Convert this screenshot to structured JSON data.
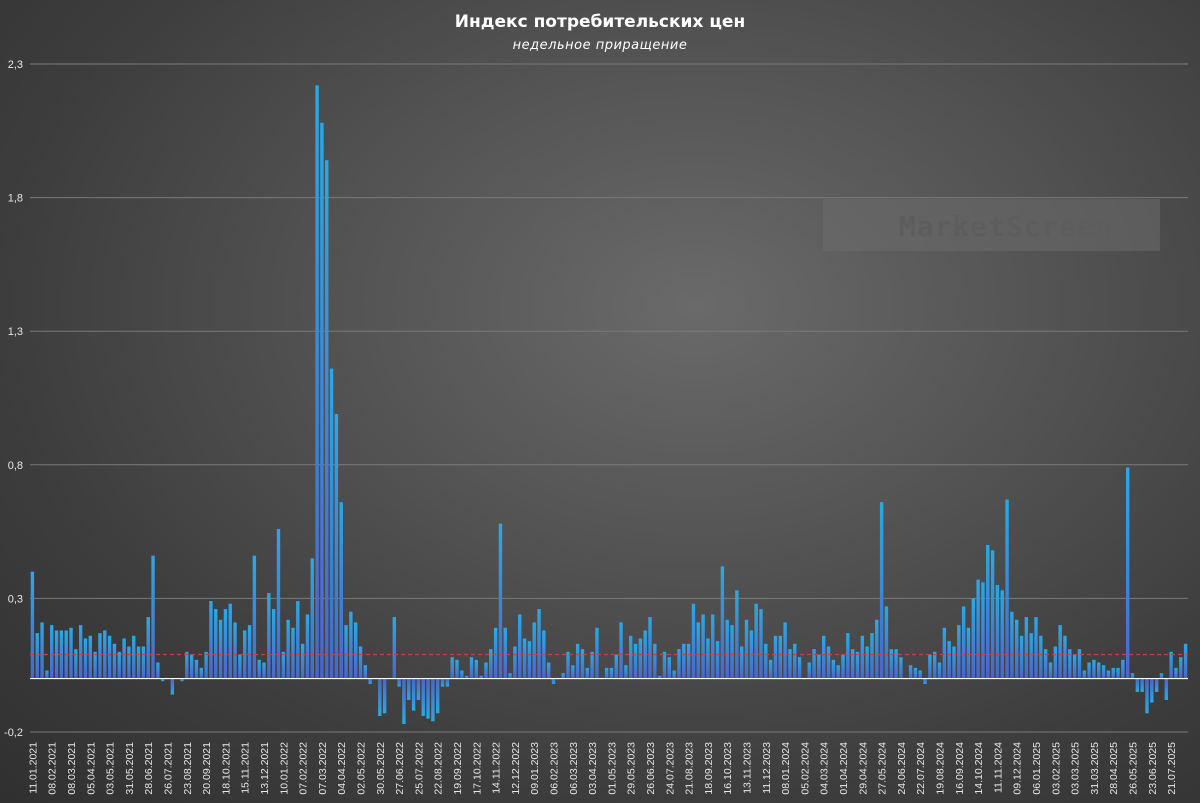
{
  "chart_data": {
    "type": "bar",
    "title": "Индекс потребительских цен",
    "subtitle": "недельное приращение",
    "watermark": "MarketScreen",
    "xlabel": "",
    "ylabel": "",
    "ylim": [
      -0.2,
      2.3
    ],
    "yticks": [
      -0.2,
      0.3,
      0.8,
      1.3,
      1.8,
      2.3
    ],
    "ytick_labels": [
      "-0,2",
      "0,3",
      "0,8",
      "1,3",
      "1,8",
      "2,3"
    ],
    "grid": true,
    "reference_line": {
      "value": 0.09,
      "color": "#d63a3a",
      "style": "dashed"
    },
    "colors": {
      "bar_top": "#2aa9e6",
      "bar_bottom": "#4a67c9",
      "grid": "#7a7a7a",
      "zero_line": "#ffffff"
    },
    "start_date": "2021-01-11",
    "week_step_days": 7,
    "label_every": 4,
    "values": [
      0.4,
      0.17,
      0.21,
      0.03,
      0.2,
      0.18,
      0.18,
      0.18,
      0.19,
      0.11,
      0.2,
      0.15,
      0.16,
      0.1,
      0.17,
      0.18,
      0.16,
      0.13,
      0.1,
      0.15,
      0.12,
      0.16,
      0.12,
      0.12,
      0.23,
      0.46,
      0.06,
      -0.01,
      0.0,
      -0.06,
      0.0,
      -0.01,
      0.1,
      0.09,
      0.07,
      0.04,
      0.1,
      0.29,
      0.26,
      0.22,
      0.26,
      0.28,
      0.21,
      0.09,
      0.18,
      0.2,
      0.46,
      0.07,
      0.06,
      0.32,
      0.26,
      0.56,
      0.1,
      0.22,
      0.19,
      0.29,
      0.13,
      0.24,
      0.45,
      2.22,
      2.08,
      1.94,
      1.16,
      0.99,
      0.66,
      0.2,
      0.25,
      0.21,
      0.12,
      0.05,
      -0.02,
      0.0,
      -0.14,
      -0.13,
      0.0,
      0.23,
      -0.03,
      -0.17,
      -0.08,
      -0.12,
      -0.08,
      -0.14,
      -0.15,
      -0.16,
      -0.13,
      -0.03,
      -0.03,
      0.08,
      0.07,
      0.03,
      0.01,
      0.08,
      0.07,
      0.01,
      0.06,
      0.11,
      0.19,
      0.58,
      0.19,
      0.02,
      0.12,
      0.24,
      0.15,
      0.14,
      0.21,
      0.26,
      0.18,
      0.06,
      -0.02,
      0.0,
      0.02,
      0.1,
      0.05,
      0.13,
      0.11,
      0.04,
      0.1,
      0.19,
      0.0,
      0.04,
      0.04,
      0.09,
      0.21,
      0.05,
      0.16,
      0.13,
      0.15,
      0.18,
      0.23,
      0.13,
      0.01,
      0.1,
      0.08,
      0.03,
      0.11,
      0.13,
      0.13,
      0.28,
      0.21,
      0.24,
      0.15,
      0.24,
      0.14,
      0.42,
      0.22,
      0.2,
      0.33,
      0.12,
      0.22,
      0.18,
      0.28,
      0.26,
      0.13,
      0.07,
      0.16,
      0.16,
      0.21,
      0.11,
      0.13,
      0.08,
      0.0,
      0.06,
      0.11,
      0.09,
      0.16,
      0.12,
      0.07,
      0.05,
      0.09,
      0.17,
      0.11,
      0.1,
      0.16,
      0.12,
      0.17,
      0.22,
      0.66,
      0.27,
      0.11,
      0.11,
      0.08,
      0.0,
      0.05,
      0.04,
      0.03,
      -0.02,
      0.09,
      0.1,
      0.06,
      0.19,
      0.14,
      0.12,
      0.2,
      0.27,
      0.19,
      0.3,
      0.37,
      0.36,
      0.5,
      0.48,
      0.35,
      0.33,
      0.67,
      0.25,
      0.22,
      0.16,
      0.23,
      0.17,
      0.23,
      0.16,
      0.11,
      0.06,
      0.12,
      0.2,
      0.16,
      0.11,
      0.09,
      0.11,
      0.03,
      0.06,
      0.07,
      0.06,
      0.05,
      0.03,
      0.04,
      0.04,
      0.07,
      0.79,
      0.02,
      -0.05,
      -0.05,
      -0.13,
      -0.09,
      -0.05,
      0.02,
      -0.08,
      0.1,
      0.04,
      0.08,
      0.13
    ]
  }
}
